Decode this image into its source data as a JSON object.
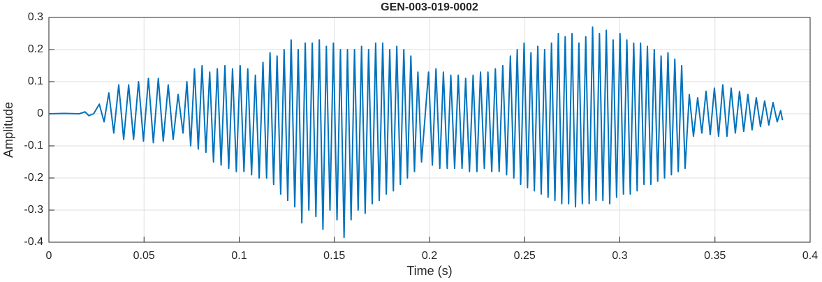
{
  "chart_data": {
    "type": "line",
    "title": "GEN-003-019-0002",
    "x_label": "Time (s)",
    "y_label": "Amplitude",
    "xlim": [
      0,
      0.4
    ],
    "xticks": [
      0,
      0.05,
      0.1,
      0.15,
      0.2,
      0.25,
      0.3,
      0.35,
      0.4
    ],
    "ylim": [
      -0.4,
      0.3
    ],
    "yticks": [
      -0.4,
      -0.3,
      -0.2,
      -0.1,
      0,
      0.1,
      0.2,
      0.3
    ],
    "grid": true,
    "x": [
      0,
      0.008,
      0.016,
      0.019,
      0.021,
      0.0235,
      0.0265,
      0.029,
      0.0315,
      0.0341,
      0.0367,
      0.0393,
      0.0419,
      0.0445,
      0.0471,
      0.0497,
      0.0523,
      0.0549,
      0.0575,
      0.0601,
      0.0627,
      0.0653,
      0.0679,
      0.0705,
      0.0725,
      0.0745,
      0.0765,
      0.0785,
      0.0805,
      0.0825,
      0.0845,
      0.0865,
      0.0885,
      0.0905,
      0.0925,
      0.0945,
      0.0965,
      0.0985,
      0.1005,
      0.1025,
      0.1045,
      0.1065,
      0.1085,
      0.1105,
      0.1125,
      0.1144,
      0.1162,
      0.1181,
      0.1199,
      0.1218,
      0.1236,
      0.1255,
      0.1273,
      0.1292,
      0.131,
      0.1329,
      0.1347,
      0.1366,
      0.1384,
      0.1403,
      0.1421,
      0.144,
      0.1458,
      0.1477,
      0.1495,
      0.1514,
      0.1532,
      0.1551,
      0.1569,
      0.1588,
      0.1606,
      0.1625,
      0.1643,
      0.1662,
      0.168,
      0.1699,
      0.1717,
      0.1736,
      0.1754,
      0.1773,
      0.1791,
      0.181,
      0.1828,
      0.1847,
      0.1865,
      0.1884,
      0.1902,
      0.1921,
      0.1939,
      0.1958,
      0.1995,
      0.2015,
      0.2034,
      0.2054,
      0.2073,
      0.2093,
      0.2112,
      0.2132,
      0.2151,
      0.2171,
      0.219,
      0.221,
      0.2229,
      0.2249,
      0.2268,
      0.2288,
      0.2307,
      0.2327,
      0.2346,
      0.2366,
      0.2385,
      0.2405,
      0.2425,
      0.2443,
      0.2461,
      0.2479,
      0.2497,
      0.2515,
      0.2533,
      0.2551,
      0.2569,
      0.2587,
      0.2605,
      0.2623,
      0.2641,
      0.2659,
      0.2677,
      0.2695,
      0.2713,
      0.2731,
      0.2749,
      0.2767,
      0.2785,
      0.2803,
      0.2821,
      0.2839,
      0.2857,
      0.2875,
      0.2893,
      0.2911,
      0.2929,
      0.2947,
      0.2965,
      0.2983,
      0.3001,
      0.3019,
      0.3037,
      0.3055,
      0.3073,
      0.3091,
      0.3109,
      0.3127,
      0.3145,
      0.3163,
      0.3181,
      0.3199,
      0.3217,
      0.3235,
      0.3253,
      0.3271,
      0.3289,
      0.3307,
      0.3325,
      0.3343,
      0.3365,
      0.3387,
      0.3409,
      0.3431,
      0.3453,
      0.3475,
      0.3497,
      0.3519,
      0.3541,
      0.3563,
      0.3585,
      0.3607,
      0.3629,
      0.3651,
      0.3673,
      0.3695,
      0.3717,
      0.3739,
      0.3761,
      0.3783,
      0.3805,
      0.3827,
      0.3845,
      0.3855
    ],
    "series": [
      {
        "color": "#0072BD",
        "values": [
          0,
          0.001,
          0,
          0.006,
          -0.006,
          0,
          0.03,
          -0.025,
          0.065,
          -0.06,
          0.09,
          -0.08,
          0.09,
          -0.08,
          0.1,
          -0.085,
          0.11,
          -0.09,
          0.11,
          -0.085,
          0.09,
          -0.08,
          0.06,
          -0.06,
          0.1,
          -0.1,
          0.14,
          -0.11,
          0.15,
          -0.12,
          0.13,
          -0.15,
          0.14,
          -0.16,
          0.15,
          -0.17,
          0.14,
          -0.18,
          0.15,
          -0.18,
          0.14,
          -0.19,
          0.12,
          -0.2,
          0.16,
          -0.2,
          0.19,
          -0.22,
          0.18,
          -0.25,
          0.2,
          -0.27,
          0.23,
          -0.29,
          0.2,
          -0.34,
          0.22,
          -0.3,
          0.22,
          -0.32,
          0.23,
          -0.36,
          0.21,
          -0.3,
          0.22,
          -0.33,
          0.2,
          -0.385,
          0.2,
          -0.33,
          0.2,
          -0.3,
          0.21,
          -0.31,
          0.2,
          -0.28,
          0.22,
          -0.27,
          0.22,
          -0.25,
          0.2,
          -0.24,
          0.21,
          -0.22,
          0.2,
          -0.2,
          0.18,
          -0.18,
          0.13,
          -0.15,
          0.13,
          -0.16,
          0.14,
          -0.17,
          0.13,
          -0.17,
          0.12,
          -0.17,
          0.12,
          -0.17,
          0.11,
          -0.18,
          0.12,
          -0.18,
          0.13,
          -0.17,
          0.13,
          -0.18,
          0.14,
          -0.18,
          0.15,
          -0.19,
          0.18,
          -0.2,
          0.2,
          -0.22,
          0.22,
          -0.23,
          0.19,
          -0.24,
          0.21,
          -0.25,
          0.2,
          -0.26,
          0.22,
          -0.27,
          0.25,
          -0.28,
          0.24,
          -0.28,
          0.25,
          -0.29,
          0.22,
          -0.28,
          0.24,
          -0.28,
          0.27,
          -0.27,
          0.25,
          -0.27,
          0.26,
          -0.28,
          0.23,
          -0.26,
          0.25,
          -0.25,
          0.23,
          -0.25,
          0.22,
          -0.24,
          0.22,
          -0.22,
          0.21,
          -0.22,
          0.2,
          -0.21,
          0.18,
          -0.2,
          0.19,
          -0.19,
          0.17,
          -0.18,
          0.15,
          -0.17,
          0.06,
          -0.07,
          0.05,
          -0.06,
          0.07,
          -0.065,
          0.08,
          -0.07,
          0.09,
          -0.07,
          0.08,
          -0.06,
          0.07,
          -0.055,
          0.06,
          -0.05,
          0.05,
          -0.04,
          0.04,
          -0.035,
          0.035,
          -0.025,
          0.01,
          -0.02
        ]
      }
    ]
  }
}
